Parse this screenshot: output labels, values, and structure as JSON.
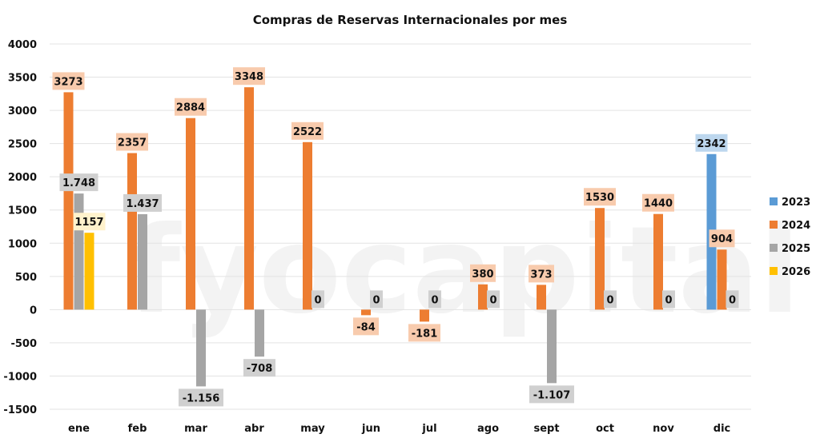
{
  "chart_data": {
    "type": "bar",
    "title": "Compras de Reservas Internacionales por mes",
    "xlabel": "",
    "ylabel": "",
    "ylim": [
      -1500,
      4000
    ],
    "yticks": [
      -1500,
      -1000,
      -500,
      0,
      500,
      1000,
      1500,
      2000,
      2500,
      3000,
      3500,
      4000
    ],
    "categories": [
      "ene",
      "feb",
      "mar",
      "abr",
      "may",
      "jun",
      "jul",
      "ago",
      "sept",
      "oct",
      "nov",
      "dic"
    ],
    "series": [
      {
        "name": "2023",
        "color": "#5b9bd5",
        "labelBg": "#bdd7ee",
        "values": [
          null,
          null,
          null,
          null,
          null,
          null,
          null,
          null,
          null,
          null,
          null,
          2342
        ],
        "labels": [
          null,
          null,
          null,
          null,
          null,
          null,
          null,
          null,
          null,
          null,
          null,
          "2342"
        ]
      },
      {
        "name": "2024",
        "color": "#ed7d31",
        "labelBg": "#f8cbad",
        "values": [
          3273,
          2357,
          2884,
          3348,
          2522,
          -84,
          -181,
          380,
          373,
          1530,
          1440,
          904
        ],
        "labels": [
          "3273",
          "2357",
          "2884",
          "3348",
          "2522",
          "-84",
          "-181",
          "380",
          "373",
          "1530",
          "1440",
          "904"
        ]
      },
      {
        "name": "2025",
        "color": "#a5a5a5",
        "labelBg": "#d0d0d0",
        "values": [
          1748,
          1437,
          -1156,
          -708,
          0,
          0,
          0,
          0,
          -1107,
          0,
          0,
          0
        ],
        "labels": [
          "1.748",
          "1.437",
          "-1.156",
          "-708",
          "0",
          "0",
          "0",
          "0",
          "-1.107",
          "0",
          "0",
          "0"
        ]
      },
      {
        "name": "2026",
        "color": "#ffc000",
        "labelBg": "#fff2cc",
        "values": [
          1157,
          null,
          null,
          null,
          null,
          null,
          null,
          null,
          null,
          null,
          null,
          null
        ],
        "labels": [
          "1157",
          null,
          null,
          null,
          null,
          null,
          null,
          null,
          null,
          null,
          null,
          null
        ]
      }
    ],
    "legend": {
      "position": "right",
      "entries": [
        "2023",
        "2024",
        "2025",
        "2026"
      ]
    },
    "grid": true
  },
  "watermark": {
    "text": "fyocapital",
    "logo": "fyo"
  }
}
